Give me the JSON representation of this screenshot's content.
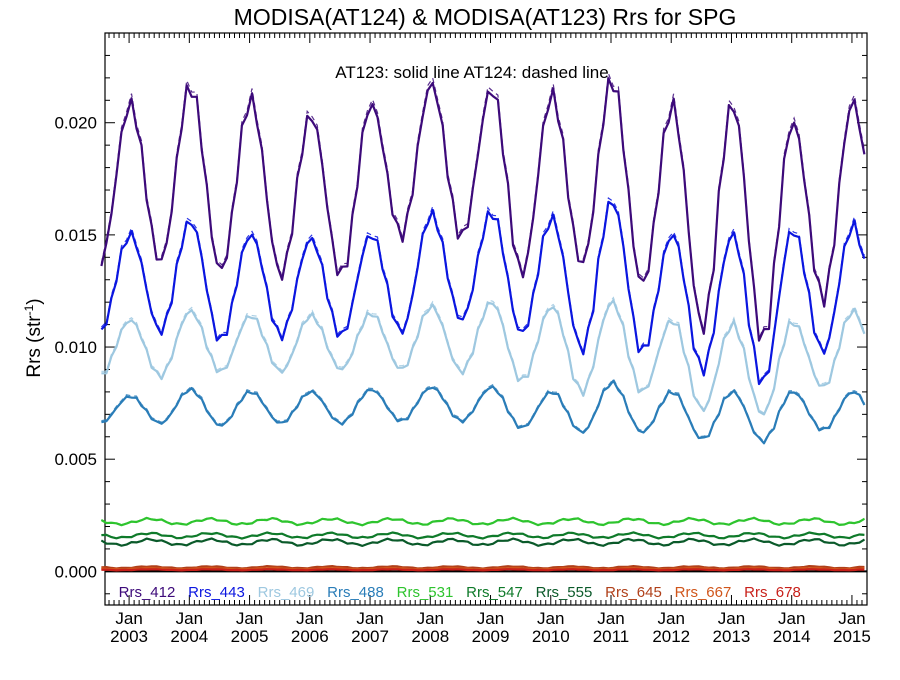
{
  "chart_data": {
    "type": "line",
    "title": "MODISA(AT124) & MODISA(AT123)  Rrs for SPG",
    "annotation": "AT123: solid line   AT124: dashed line",
    "ylabel": "Rrs (str",
    "ylabel_sup": "-1",
    "xlabel": "",
    "ylim": [
      -0.0015,
      0.024
    ],
    "xlim": [
      2002.6,
      2015.25
    ],
    "grid": false,
    "legend_position": "bottom",
    "yticks": [
      {
        "value": 0.0,
        "label": "0.000"
      },
      {
        "value": 0.005,
        "label": "0.005"
      },
      {
        "value": 0.01,
        "label": "0.010"
      },
      {
        "value": 0.015,
        "label": "0.015"
      },
      {
        "value": 0.02,
        "label": "0.020"
      }
    ],
    "xticks": [
      {
        "value": 2003,
        "month": "Jan",
        "year": "2003"
      },
      {
        "value": 2004,
        "month": "Jan",
        "year": "2004"
      },
      {
        "value": 2005,
        "month": "Jan",
        "year": "2005"
      },
      {
        "value": 2006,
        "month": "Jan",
        "year": "2006"
      },
      {
        "value": 2007,
        "month": "Jan",
        "year": "2007"
      },
      {
        "value": 2008,
        "month": "Jan",
        "year": "2008"
      },
      {
        "value": 2009,
        "month": "Jan",
        "year": "2009"
      },
      {
        "value": 2010,
        "month": "Jan",
        "year": "2010"
      },
      {
        "value": 2011,
        "month": "Jan",
        "year": "2011"
      },
      {
        "value": 2012,
        "month": "Jan",
        "year": "2012"
      },
      {
        "value": 2013,
        "month": "Jan",
        "year": "2013"
      },
      {
        "value": 2014,
        "month": "Jan",
        "year": "2014"
      },
      {
        "value": 2015,
        "month": "Jan",
        "year": "2015"
      }
    ],
    "series": [
      {
        "name": "Rrs_412",
        "color": "#3d0a7a",
        "base": 0.0176,
        "amp": 0.0037,
        "peaks": [
          0.0208,
          0.0216,
          0.021,
          0.0203,
          0.0208,
          0.0217,
          0.0215,
          0.0212,
          0.0219,
          0.0207,
          0.0208,
          0.02,
          0.0209
        ],
        "troughs": [
          0.0138,
          0.0134,
          0.0132,
          0.0132,
          0.015,
          0.0149,
          0.0133,
          0.0137,
          0.0128,
          0.0109,
          0.0103,
          0.0122
        ]
      },
      {
        "name": "Rrs_443",
        "color": "#0b16e0",
        "base": 0.0128,
        "amp": 0.0025,
        "peaks": [
          0.015,
          0.0156,
          0.015,
          0.0148,
          0.015,
          0.0159,
          0.016,
          0.0157,
          0.0165,
          0.015,
          0.015,
          0.0152,
          0.0154
        ],
        "troughs": [
          0.0107,
          0.0103,
          0.0105,
          0.0105,
          0.0107,
          0.0112,
          0.0106,
          0.0099,
          0.0098,
          0.009,
          0.0084,
          0.0098
        ]
      },
      {
        "name": "Rrs_469",
        "color": "#9ec8e0",
        "base": 0.0101,
        "amp": 0.0014,
        "peaks": [
          0.0112,
          0.0116,
          0.0114,
          0.0114,
          0.0115,
          0.0118,
          0.012,
          0.0118,
          0.012,
          0.0112,
          0.011,
          0.0111,
          0.0116
        ],
        "troughs": [
          0.0087,
          0.0089,
          0.0089,
          0.009,
          0.009,
          0.0089,
          0.0085,
          0.008,
          0.008,
          0.0072,
          0.007,
          0.0082
        ]
      },
      {
        "name": "Rrs_488",
        "color": "#2a7db8",
        "base": 0.0072,
        "amp": 0.0008,
        "peaks": [
          0.0078,
          0.0081,
          0.008,
          0.008,
          0.0081,
          0.0082,
          0.0082,
          0.008,
          0.0084,
          0.008,
          0.008,
          0.008,
          0.008
        ],
        "troughs": [
          0.0066,
          0.0065,
          0.0066,
          0.0066,
          0.0067,
          0.0067,
          0.0064,
          0.0062,
          0.0062,
          0.0059,
          0.0058,
          0.0063
        ]
      },
      {
        "name": "Rrs_531",
        "color": "#2ec42e",
        "base": 0.00222,
        "amp": 0.00012,
        "peaks": [],
        "troughs": []
      },
      {
        "name": "Rrs_547",
        "color": "#0f7a2a",
        "base": 0.0016,
        "amp": 0.0001,
        "peaks": [],
        "troughs": []
      },
      {
        "name": "Rrs_555",
        "color": "#0b5a2a",
        "base": 0.0013,
        "amp": 0.00012,
        "peaks": [],
        "troughs": []
      },
      {
        "name": "Rrs_645",
        "color": "#b0401a",
        "base": 0.00018,
        "amp": 4e-05,
        "peaks": [],
        "troughs": []
      },
      {
        "name": "Rrs_667",
        "color": "#d0551a",
        "base": 0.00012,
        "amp": 3e-05,
        "peaks": [],
        "troughs": []
      },
      {
        "name": "Rrs_678",
        "color": "#c8201a",
        "base": 7e-05,
        "amp": 2e-05,
        "peaks": [],
        "troughs": []
      }
    ]
  }
}
